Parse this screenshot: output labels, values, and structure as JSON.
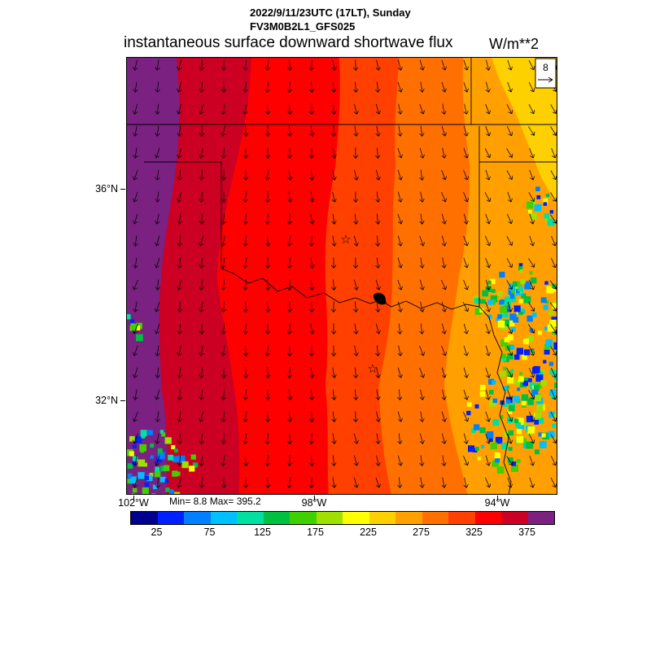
{
  "header": {
    "datetime_line": "2022/9/11/23UTC (17LT), Sunday",
    "model_line": "FV3M0B2L1_GFS025",
    "title": "instantaneous surface downward shortwave flux",
    "units": "W/m**2"
  },
  "stats": {
    "min_max": "Min= 8.8 Max= 395.2"
  },
  "reference_vector": {
    "label": "8"
  },
  "chart_data": {
    "type": "heatmap",
    "title": "instantaneous surface downward shortwave flux",
    "units": "W/m**2",
    "valid_time": "2022/9/11/23UTC (17LT), Sunday",
    "model_run": "FV3M0B2L1_GFS025",
    "min": 8.8,
    "max": 395.2,
    "lat_ticks": [
      "36°N",
      "32°N"
    ],
    "lon_ticks": [
      "102°W",
      "98°W",
      "94°W"
    ],
    "wind_reference_speed": 8,
    "wind_description": "surface wind vectors pointing roughly southward (northerly flow), tilting southeast toward the east of the domain",
    "colorbar": {
      "range": [
        0,
        400
      ],
      "tick_values": [
        25,
        75,
        125,
        175,
        225,
        275,
        325,
        375
      ],
      "colors": [
        "#00008f",
        "#0020ff",
        "#0080ff",
        "#00c0ff",
        "#00e0a0",
        "#00c040",
        "#40d000",
        "#a0e000",
        "#ffff00",
        "#ffd000",
        "#ffa000",
        "#ff7000",
        "#ff4000",
        "#ff0000",
        "#cc0022",
        "#7a2182"
      ]
    },
    "field_summary": {
      "west_to_east_bands": [
        {
          "approx_value": ">375",
          "color": "#7a2182"
        },
        {
          "approx_value": "325-375",
          "color": "#cc0022"
        },
        {
          "approx_value": "275-325",
          "color": "#ff0000"
        },
        {
          "approx_value": "250-275",
          "color": "#ff4000"
        },
        {
          "approx_value": "225-250",
          "color": "#ff7000"
        },
        {
          "approx_value": "200-225",
          "color": "#ffa000"
        },
        {
          "approx_value": "175-200 (NE corner)",
          "color": "#ffd000"
        }
      ],
      "low_flux_speckles": "scattered low-flux (25-150 W/m**2) cloud patches in east Texas / SE Oklahoma and the far southwest corner"
    }
  }
}
